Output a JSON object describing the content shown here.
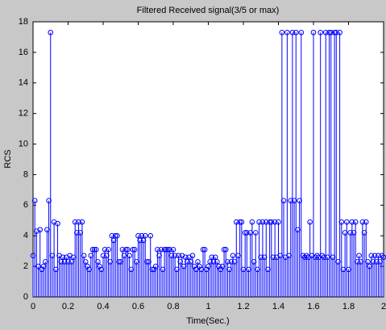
{
  "chart_data": {
    "type": "stem",
    "title": "Filtered Received signal(3/5 or max)",
    "x_label": "Time(Sec.)",
    "y_label": "RCS",
    "color": "#0000ff",
    "x": [
      0,
      0.01,
      0.02,
      0.03,
      0.04,
      0.05,
      0.06,
      0.07,
      0.08,
      0.09,
      0.1,
      0.11,
      0.12,
      0.13,
      0.14,
      0.15,
      0.16,
      0.17,
      0.18,
      0.19,
      0.2,
      0.21,
      0.22,
      0.23,
      0.24,
      0.25,
      0.26,
      0.27,
      0.28,
      0.29,
      0.3,
      0.31,
      0.32,
      0.33,
      0.34,
      0.35,
      0.36,
      0.37,
      0.38,
      0.39,
      0.4,
      0.41,
      0.42,
      0.43,
      0.44,
      0.45,
      0.46,
      0.47,
      0.48,
      0.49,
      0.5,
      0.51,
      0.52,
      0.53,
      0.54,
      0.55,
      0.56,
      0.57,
      0.58,
      0.59,
      0.6,
      0.61,
      0.62,
      0.63,
      0.64,
      0.65,
      0.66,
      0.67,
      0.68,
      0.69,
      0.7,
      0.71,
      0.72,
      0.73,
      0.74,
      0.75,
      0.76,
      0.77,
      0.78,
      0.79,
      0.8,
      0.81,
      0.82,
      0.83,
      0.84,
      0.85,
      0.86,
      0.87,
      0.88,
      0.89,
      0.9,
      0.91,
      0.92,
      0.93,
      0.94,
      0.95,
      0.96,
      0.97,
      0.98,
      0.99,
      1,
      1.01,
      1.02,
      1.03,
      1.04,
      1.05,
      1.06,
      1.07,
      1.08,
      1.09,
      1.1,
      1.11,
      1.12,
      1.13,
      1.14,
      1.15,
      1.16,
      1.17,
      1.18,
      1.19,
      1.2,
      1.21,
      1.22,
      1.23,
      1.24,
      1.25,
      1.26,
      1.27,
      1.28,
      1.29,
      1.3,
      1.31,
      1.32,
      1.33,
      1.34,
      1.35,
      1.36,
      1.37,
      1.38,
      1.39,
      1.4,
      1.41,
      1.42,
      1.43,
      1.44,
      1.45,
      1.46,
      1.47,
      1.48,
      1.49,
      1.5,
      1.51,
      1.52,
      1.53,
      1.54,
      1.55,
      1.56,
      1.57,
      1.58,
      1.59,
      1.6,
      1.61,
      1.62,
      1.63,
      1.64,
      1.65,
      1.66,
      1.67,
      1.68,
      1.69,
      1.7,
      1.71,
      1.72,
      1.73,
      1.74,
      1.75,
      1.76,
      1.77,
      1.78,
      1.79,
      1.8,
      1.81,
      1.82,
      1.83,
      1.84,
      1.85,
      1.86,
      1.87,
      1.88,
      1.89,
      1.9,
      1.91,
      1.92,
      1.93,
      1.94,
      1.95,
      1.96,
      1.97,
      1.98,
      1.99,
      2
    ],
    "values": [
      2.7,
      6.3,
      4.3,
      2.0,
      4.4,
      1.8,
      2.0,
      2.3,
      4.4,
      6.3,
      17.3,
      2.7,
      4.9,
      1.8,
      4.8,
      2.7,
      2.3,
      2.6,
      2.3,
      2.6,
      2.3,
      2.7,
      2.3,
      2.6,
      4.9,
      4.2,
      4.9,
      4.2,
      4.9,
      2.7,
      2.3,
      2.0,
      1.8,
      2.7,
      3.1,
      3.1,
      3.1,
      2.3,
      2.0,
      1.8,
      2.7,
      3.1,
      2.7,
      3.1,
      2.3,
      4.0,
      3.7,
      4.0,
      4.0,
      2.3,
      2.3,
      3.1,
      2.7,
      3.1,
      3.1,
      2.7,
      1.8,
      3.1,
      3.1,
      2.3,
      4.0,
      3.7,
      4.0,
      3.7,
      4.0,
      2.3,
      2.3,
      4.0,
      1.8,
      1.8,
      2.0,
      3.1,
      2.7,
      3.1,
      1.8,
      3.1,
      3.1,
      3.1,
      3.1,
      2.7,
      3.1,
      2.7,
      1.8,
      2.7,
      2.3,
      2.7,
      2.0,
      2.6,
      2.3,
      2.6,
      2.3,
      2.7,
      2.0,
      1.8,
      2.3,
      2.0,
      1.8,
      3.1,
      3.1,
      1.8,
      2.0,
      2.3,
      2.6,
      2.3,
      2.6,
      2.3,
      2.0,
      1.8,
      2.0,
      3.1,
      3.1,
      2.3,
      1.8,
      2.3,
      2.7,
      2.3,
      4.9,
      2.7,
      4.9,
      4.9,
      1.8,
      4.2,
      4.2,
      1.8,
      4.2,
      4.9,
      2.3,
      4.2,
      1.8,
      4.9,
      2.6,
      4.9,
      2.6,
      4.9,
      1.8,
      4.9,
      4.9,
      2.6,
      4.9,
      2.6,
      4.9,
      2.7,
      17.3,
      6.3,
      2.6,
      17.3,
      2.7,
      6.3,
      17.3,
      6.3,
      17.3,
      4.4,
      6.3,
      17.3,
      2.7,
      2.6,
      2.7,
      2.6,
      4.9,
      2.7,
      17.3,
      2.6,
      2.7,
      2.6,
      17.3,
      2.7,
      2.6,
      17.3,
      2.6,
      17.3,
      17.3,
      2.6,
      17.3,
      17.3,
      2.3,
      17.3,
      4.9,
      1.8,
      4.2,
      4.9,
      1.8,
      4.2,
      4.9,
      4.2,
      4.9,
      2.3,
      2.7,
      2.3,
      4.9,
      4.2,
      4.9,
      2.3,
      2.0,
      2.7,
      2.3,
      2.7,
      2.3,
      2.7,
      2.3,
      2.7,
      2.6
    ],
    "xlim": [
      0,
      2
    ],
    "xticks": [
      0,
      0.2,
      0.4,
      0.6,
      0.8,
      1,
      1.2,
      1.4,
      1.6,
      1.8,
      2
    ],
    "ylim": [
      0,
      18
    ],
    "yticks": [
      0,
      2,
      4,
      6,
      8,
      10,
      12,
      14,
      16,
      18
    ]
  }
}
